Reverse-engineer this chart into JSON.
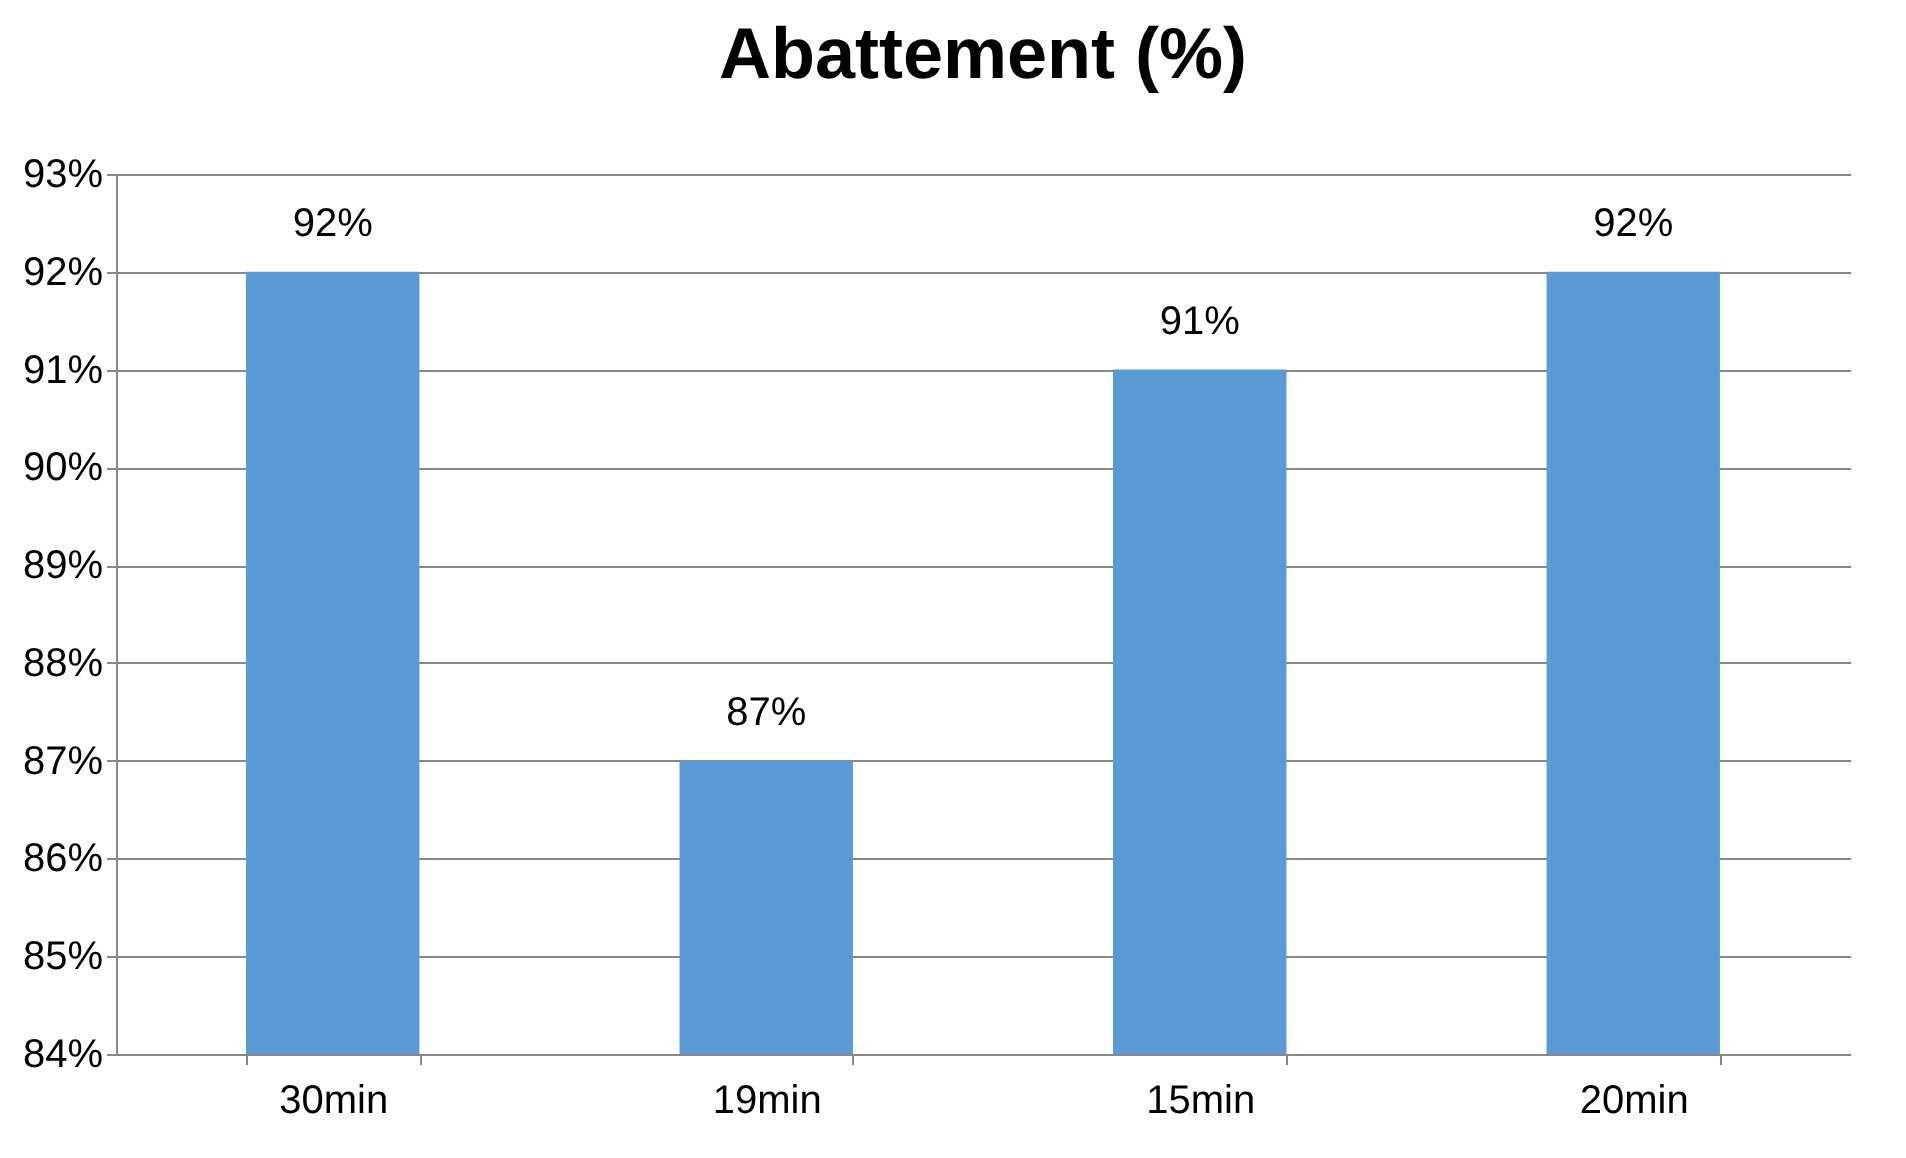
{
  "chart_data": {
    "type": "bar",
    "title": "Abattement (%)",
    "categories": [
      "30min",
      "19min",
      "15min",
      "20min"
    ],
    "values": [
      92,
      87,
      91,
      92
    ],
    "value_labels": [
      "92%",
      "87%",
      "91%",
      "92%"
    ],
    "color": "#5b9bd5",
    "ylim": [
      84,
      93
    ],
    "yticks": [
      {
        "value": 84,
        "label": "84%"
      },
      {
        "value": 85,
        "label": "85%"
      },
      {
        "value": 86,
        "label": "86%"
      },
      {
        "value": 87,
        "label": "87%"
      },
      {
        "value": 88,
        "label": "88%"
      },
      {
        "value": 89,
        "label": "89%"
      },
      {
        "value": 90,
        "label": "90%"
      },
      {
        "value": 91,
        "label": "91%"
      },
      {
        "value": 92,
        "label": "92%"
      },
      {
        "value": 93,
        "label": "93%"
      }
    ],
    "grid": "y"
  }
}
